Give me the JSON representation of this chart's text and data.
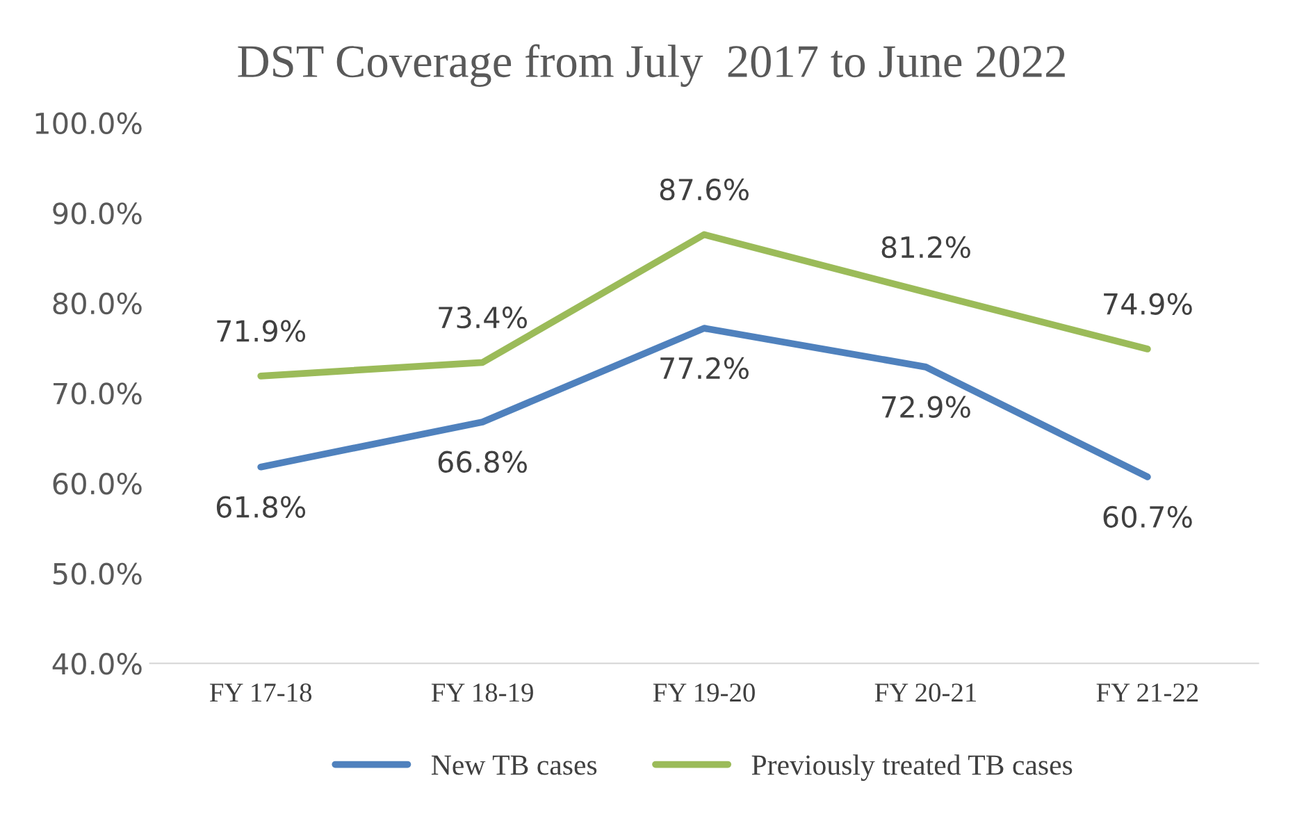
{
  "chart_data": {
    "type": "line",
    "title": "DST Coverage from July  2017 to June 2022",
    "categories": [
      "FY 17-18",
      "FY 18-19",
      "FY 19-20",
      "FY 20-21",
      "FY 21-22"
    ],
    "series": [
      {
        "name": "New TB cases",
        "color": "#4f81bd",
        "values": [
          61.8,
          66.8,
          77.2,
          72.9,
          60.7
        ],
        "value_labels": [
          "61.8%",
          "66.8%",
          "77.2%",
          "72.9%",
          "60.7%"
        ]
      },
      {
        "name": "Previously treated TB cases",
        "color": "#9bbb59",
        "values": [
          71.9,
          73.4,
          87.6,
          81.2,
          74.9
        ],
        "value_labels": [
          "71.9%",
          "73.4%",
          "87.6%",
          "81.2%",
          "74.9%"
        ]
      }
    ],
    "ylim": [
      40,
      100
    ],
    "yticks": [
      {
        "value": 40,
        "label": "40.0%"
      },
      {
        "value": 50,
        "label": "50.0%"
      },
      {
        "value": 60,
        "label": "60.0%"
      },
      {
        "value": 70,
        "label": "70.0%"
      },
      {
        "value": 80,
        "label": "80.0%"
      },
      {
        "value": 90,
        "label": "90.0%"
      },
      {
        "value": 100,
        "label": "100.0%"
      }
    ],
    "grid": false,
    "legend": "bottom",
    "marker": "none",
    "line_style": "solid"
  }
}
